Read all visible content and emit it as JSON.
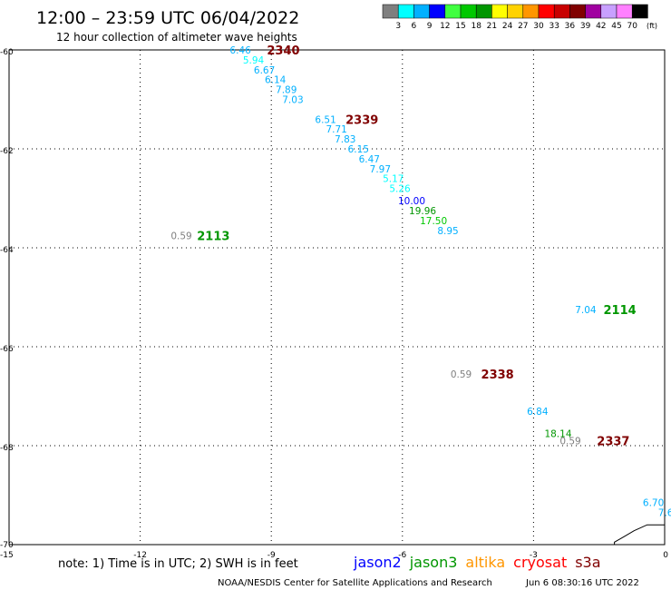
{
  "header": {
    "title": "12:00 – 23:59 UTC 06/04/2022",
    "subtitle": "12 hour collection of altimeter wave heights"
  },
  "scale": {
    "unit": "(ft)",
    "bins": [
      {
        "label": "3",
        "color": "#7f7f7f"
      },
      {
        "label": "6",
        "color": "#00ffff"
      },
      {
        "label": "9",
        "color": "#00b0ff"
      },
      {
        "label": "12",
        "color": "#0000ff"
      },
      {
        "label": "15",
        "color": "#40ff40"
      },
      {
        "label": "18",
        "color": "#00c800"
      },
      {
        "label": "21",
        "color": "#009600"
      },
      {
        "label": "24",
        "color": "#ffff00"
      },
      {
        "label": "27",
        "color": "#ffd200"
      },
      {
        "label": "30",
        "color": "#ff9600"
      },
      {
        "label": "33",
        "color": "#ff0000"
      },
      {
        "label": "36",
        "color": "#c80000"
      },
      {
        "label": "39",
        "color": "#800000"
      },
      {
        "label": "42",
        "color": "#a000a0"
      },
      {
        "label": "45",
        "color": "#c8a0ff"
      },
      {
        "label": "70",
        "color": "#ff80ff"
      },
      {
        "label": "",
        "color": "#000000"
      }
    ]
  },
  "map": {
    "lon_min": -15,
    "lon_max": 0,
    "lat_min": -70,
    "lat_max": -60,
    "x_ticks": [
      {
        "lon": -15,
        "label": "-15"
      },
      {
        "lon": -12,
        "label": "-12"
      },
      {
        "lon": -9,
        "label": "-9"
      },
      {
        "lon": -6,
        "label": "-6"
      },
      {
        "lon": -3,
        "label": "-3"
      },
      {
        "lon": 0,
        "label": "0"
      }
    ],
    "y_ticks": [
      {
        "lat": -60,
        "label": "-60"
      },
      {
        "lat": -62,
        "label": "-62"
      },
      {
        "lat": -64,
        "label": "-64"
      },
      {
        "lat": -66,
        "label": "-66"
      },
      {
        "lat": -68,
        "label": "-68"
      },
      {
        "lat": -70,
        "label": "-70"
      }
    ],
    "observations": [
      {
        "text": "6.46",
        "lon": -9.95,
        "lat": -60.0,
        "color": "#00b0ff"
      },
      {
        "text": "5.94",
        "lon": -9.65,
        "lat": -60.2,
        "color": "#00ffff"
      },
      {
        "text": "6.67",
        "lon": -9.4,
        "lat": -60.4,
        "color": "#00b0ff"
      },
      {
        "text": "6.14",
        "lon": -9.15,
        "lat": -60.6,
        "color": "#00b0ff"
      },
      {
        "text": "7.89",
        "lon": -8.9,
        "lat": -60.8,
        "color": "#00b0ff"
      },
      {
        "text": "7.03",
        "lon": -8.75,
        "lat": -61.0,
        "color": "#00b0ff"
      },
      {
        "text": "6.51",
        "lon": -8.0,
        "lat": -61.4,
        "color": "#00b0ff"
      },
      {
        "text": "7.71",
        "lon": -7.75,
        "lat": -61.6,
        "color": "#00b0ff"
      },
      {
        "text": "7.83",
        "lon": -7.55,
        "lat": -61.8,
        "color": "#00b0ff"
      },
      {
        "text": "6.15",
        "lon": -7.25,
        "lat": -62.0,
        "color": "#00b0ff"
      },
      {
        "text": "6.47",
        "lon": -7.0,
        "lat": -62.2,
        "color": "#00b0ff"
      },
      {
        "text": "7.97",
        "lon": -6.75,
        "lat": -62.4,
        "color": "#00b0ff"
      },
      {
        "text": "5.17",
        "lon": -6.45,
        "lat": -62.6,
        "color": "#00ffff"
      },
      {
        "text": "5.26",
        "lon": -6.3,
        "lat": -62.8,
        "color": "#00ffff"
      },
      {
        "text": "10.00",
        "lon": -6.1,
        "lat": -63.05,
        "color": "#0000ff"
      },
      {
        "text": "19.96",
        "lon": -5.85,
        "lat": -63.25,
        "color": "#009600"
      },
      {
        "text": "17.50",
        "lon": -5.6,
        "lat": -63.45,
        "color": "#00c800"
      },
      {
        "text": "8.95",
        "lon": -5.2,
        "lat": -63.65,
        "color": "#00b0ff"
      },
      {
        "text": "0.59",
        "lon": -11.3,
        "lat": -63.75,
        "color": "#7f7f7f"
      },
      {
        "text": "7.04",
        "lon": -2.05,
        "lat": -65.25,
        "color": "#00b0ff"
      },
      {
        "text": "0.59",
        "lon": -4.9,
        "lat": -66.55,
        "color": "#7f7f7f"
      },
      {
        "text": "6.84",
        "lon": -3.15,
        "lat": -67.3,
        "color": "#00b0ff"
      },
      {
        "text": "18.14",
        "lon": -2.75,
        "lat": -67.75,
        "color": "#009600"
      },
      {
        "text": "0.59",
        "lon": -2.4,
        "lat": -67.9,
        "color": "#7f7f7f"
      },
      {
        "text": "6.70",
        "lon": -0.5,
        "lat": -69.15,
        "color": "#00b0ff"
      },
      {
        "text": "7.6",
        "lon": -0.15,
        "lat": -69.35,
        "color": "#00b0ff"
      }
    ],
    "pass_labels": [
      {
        "text": "2340",
        "lon": -9.1,
        "lat": -60.0,
        "color": "#800000"
      },
      {
        "text": "2339",
        "lon": -7.3,
        "lat": -61.4,
        "color": "#800000"
      },
      {
        "text": "2113",
        "lon": -10.7,
        "lat": -63.75,
        "color": "#009600"
      },
      {
        "text": "2114",
        "lon": -1.4,
        "lat": -65.25,
        "color": "#009600"
      },
      {
        "text": "2338",
        "lon": -4.2,
        "lat": -66.55,
        "color": "#800000"
      },
      {
        "text": "2337",
        "lon": -1.55,
        "lat": -67.9,
        "color": "#800000"
      }
    ],
    "coastline_lonlat": [
      [
        0,
        -69.6
      ],
      [
        -0.4,
        -69.6
      ],
      [
        -0.7,
        -69.72
      ],
      [
        -0.95,
        -69.85
      ],
      [
        -1.15,
        -69.95
      ],
      [
        -1.15,
        -70.0
      ]
    ]
  },
  "footer": {
    "note": "note: 1) Time is in UTC; 2) SWH is in feet",
    "satellites": [
      {
        "name": "jason2",
        "color": "#0000ff"
      },
      {
        "name": "jason3",
        "color": "#009600"
      },
      {
        "name": "altika",
        "color": "#ff9600"
      },
      {
        "name": "cryosat",
        "color": "#ff0000"
      },
      {
        "name": "s3a",
        "color": "#800000"
      }
    ],
    "credit": "NOAA/NESDIS Center for Satellite Applications and Research",
    "timestamp": "Jun  6 08:30:16 UTC 2022"
  }
}
